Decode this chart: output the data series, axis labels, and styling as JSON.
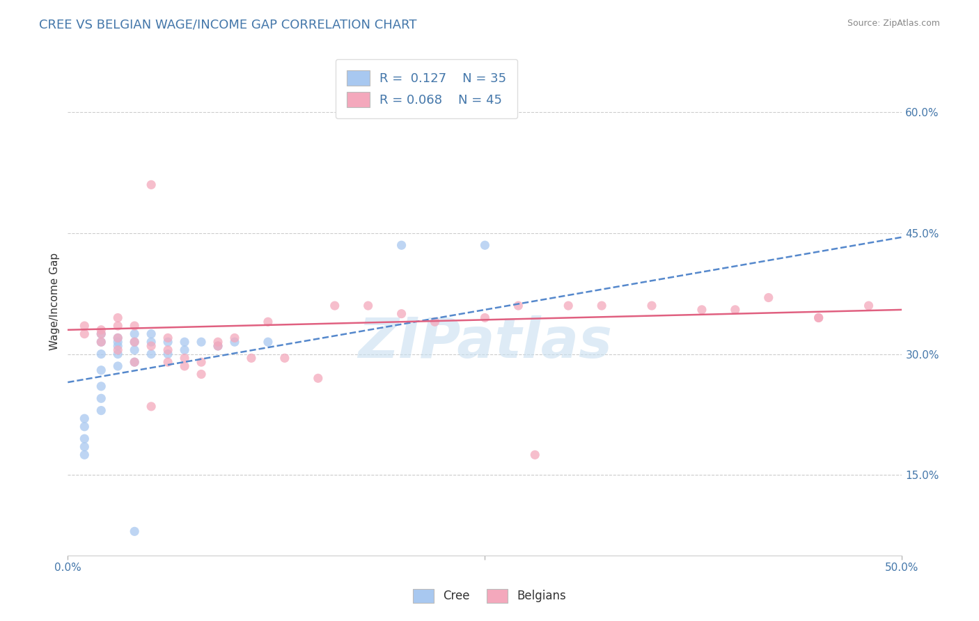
{
  "title": "CREE VS BELGIAN WAGE/INCOME GAP CORRELATION CHART",
  "source": "Source: ZipAtlas.com",
  "ylabel": "Wage/Income Gap",
  "xlim": [
    0.0,
    0.5
  ],
  "ylim": [
    0.05,
    0.68
  ],
  "x_ticks": [
    0.0,
    0.25,
    0.5
  ],
  "x_tick_labels": [
    "0.0%",
    "",
    "50.0%"
  ],
  "y_ticks": [
    0.15,
    0.3,
    0.45,
    0.6
  ],
  "y_tick_labels": [
    "15.0%",
    "30.0%",
    "45.0%",
    "60.0%"
  ],
  "cree_R": 0.127,
  "cree_N": 35,
  "belgian_R": 0.068,
  "belgian_N": 45,
  "cree_color": "#a8c8f0",
  "belgian_color": "#f4a8bc",
  "cree_line_color": "#5588cc",
  "belgian_line_color": "#e06080",
  "watermark_color": "#c8dff0",
  "cree_points_x": [
    0.01,
    0.01,
    0.01,
    0.01,
    0.01,
    0.02,
    0.02,
    0.02,
    0.02,
    0.02,
    0.02,
    0.02,
    0.03,
    0.03,
    0.03,
    0.03,
    0.03,
    0.04,
    0.04,
    0.04,
    0.04,
    0.05,
    0.05,
    0.05,
    0.06,
    0.06,
    0.07,
    0.07,
    0.08,
    0.09,
    0.1,
    0.12,
    0.2,
    0.25,
    0.04
  ],
  "cree_points_y": [
    0.175,
    0.185,
    0.195,
    0.21,
    0.22,
    0.23,
    0.245,
    0.26,
    0.28,
    0.3,
    0.315,
    0.325,
    0.285,
    0.3,
    0.31,
    0.315,
    0.32,
    0.29,
    0.305,
    0.315,
    0.325,
    0.3,
    0.315,
    0.325,
    0.3,
    0.315,
    0.305,
    0.315,
    0.315,
    0.31,
    0.315,
    0.315,
    0.435,
    0.435,
    0.08
  ],
  "belgian_points_x": [
    0.01,
    0.01,
    0.02,
    0.02,
    0.02,
    0.03,
    0.03,
    0.03,
    0.03,
    0.04,
    0.04,
    0.04,
    0.05,
    0.05,
    0.06,
    0.06,
    0.06,
    0.07,
    0.07,
    0.08,
    0.08,
    0.09,
    0.09,
    0.1,
    0.11,
    0.12,
    0.13,
    0.15,
    0.16,
    0.18,
    0.2,
    0.22,
    0.25,
    0.27,
    0.3,
    0.32,
    0.35,
    0.38,
    0.4,
    0.42,
    0.45,
    0.45,
    0.48,
    0.05,
    0.28
  ],
  "belgian_points_y": [
    0.325,
    0.335,
    0.315,
    0.325,
    0.33,
    0.305,
    0.32,
    0.335,
    0.345,
    0.29,
    0.315,
    0.335,
    0.235,
    0.31,
    0.29,
    0.305,
    0.32,
    0.285,
    0.295,
    0.275,
    0.29,
    0.31,
    0.315,
    0.32,
    0.295,
    0.34,
    0.295,
    0.27,
    0.36,
    0.36,
    0.35,
    0.34,
    0.345,
    0.36,
    0.36,
    0.36,
    0.36,
    0.355,
    0.355,
    0.37,
    0.345,
    0.345,
    0.36,
    0.51,
    0.175
  ],
  "cree_line_x": [
    0.0,
    0.5
  ],
  "cree_line_y": [
    0.265,
    0.445
  ],
  "belgian_line_x": [
    0.0,
    0.5
  ],
  "belgian_line_y": [
    0.33,
    0.355
  ]
}
